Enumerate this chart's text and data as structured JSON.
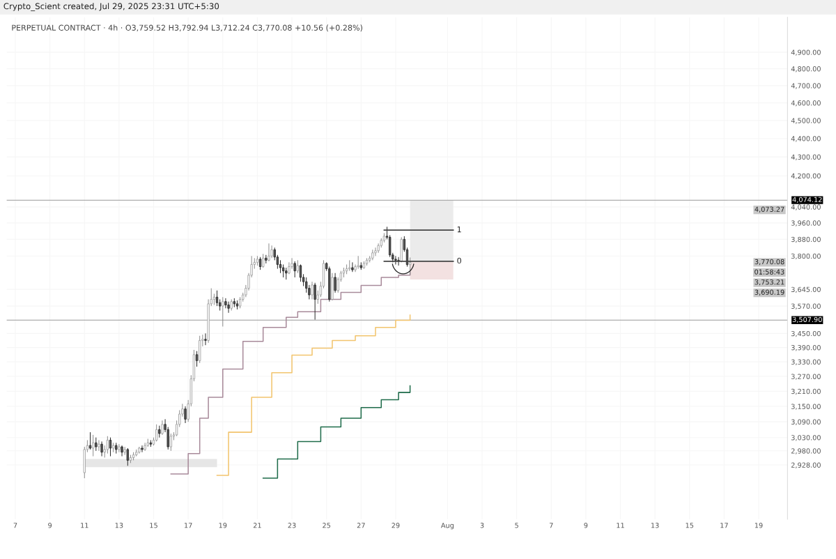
{
  "chart_data": {
    "type": "candlestick",
    "title": "Crypto_Scient created, Jul 29, 2025 23:31 UTC+5:30",
    "subtitle": "PERPETUAL CONTRACT · 4h · O3,759.52 H3,792.94 L3,712.24 C3,770.08 +10.56 (+0.28%)",
    "x": [
      "2025-07-11T00:00",
      "2025-07-11T04:00",
      "2025-07-11T08:00",
      "2025-07-11T12:00",
      "2025-07-11T16:00",
      "2025-07-11T20:00",
      "2025-07-12T00:00",
      "2025-07-12T04:00",
      "2025-07-12T08:00",
      "2025-07-12T12:00",
      "2025-07-12T16:00",
      "2025-07-12T20:00",
      "2025-07-13T00:00",
      "2025-07-13T04:00",
      "2025-07-13T08:00",
      "2025-07-13T12:00",
      "2025-07-13T16:00",
      "2025-07-13T20:00",
      "2025-07-14T00:00",
      "2025-07-14T04:00",
      "2025-07-14T08:00",
      "2025-07-14T12:00",
      "2025-07-14T16:00",
      "2025-07-14T20:00",
      "2025-07-15T00:00",
      "2025-07-15T04:00",
      "2025-07-15T08:00",
      "2025-07-15T12:00",
      "2025-07-15T16:00",
      "2025-07-15T20:00",
      "2025-07-16T00:00",
      "2025-07-16T04:00",
      "2025-07-16T08:00",
      "2025-07-16T12:00",
      "2025-07-16T16:00",
      "2025-07-16T20:00",
      "2025-07-17T00:00",
      "2025-07-17T04:00",
      "2025-07-17T08:00",
      "2025-07-17T12:00",
      "2025-07-17T16:00",
      "2025-07-17T20:00",
      "2025-07-18T00:00",
      "2025-07-18T04:00",
      "2025-07-18T08:00",
      "2025-07-18T12:00",
      "2025-07-18T16:00",
      "2025-07-18T20:00",
      "2025-07-19T00:00",
      "2025-07-19T04:00",
      "2025-07-19T08:00",
      "2025-07-19T12:00",
      "2025-07-19T16:00",
      "2025-07-19T20:00",
      "2025-07-20T00:00",
      "2025-07-20T04:00",
      "2025-07-20T08:00",
      "2025-07-20T12:00",
      "2025-07-20T16:00",
      "2025-07-20T20:00",
      "2025-07-21T00:00",
      "2025-07-21T04:00",
      "2025-07-21T08:00",
      "2025-07-21T12:00",
      "2025-07-21T16:00",
      "2025-07-21T20:00",
      "2025-07-22T00:00",
      "2025-07-22T04:00",
      "2025-07-22T08:00",
      "2025-07-22T12:00",
      "2025-07-22T16:00",
      "2025-07-22T20:00",
      "2025-07-23T00:00",
      "2025-07-23T04:00",
      "2025-07-23T08:00",
      "2025-07-23T12:00",
      "2025-07-23T16:00",
      "2025-07-23T20:00",
      "2025-07-24T00:00",
      "2025-07-24T04:00",
      "2025-07-24T08:00",
      "2025-07-24T12:00",
      "2025-07-24T16:00",
      "2025-07-24T20:00",
      "2025-07-25T00:00",
      "2025-07-25T04:00",
      "2025-07-25T08:00",
      "2025-07-25T12:00",
      "2025-07-25T16:00",
      "2025-07-25T20:00",
      "2025-07-26T00:00",
      "2025-07-26T04:00",
      "2025-07-26T08:00",
      "2025-07-26T12:00",
      "2025-07-26T16:00",
      "2025-07-26T20:00",
      "2025-07-27T00:00",
      "2025-07-27T04:00",
      "2025-07-27T08:00",
      "2025-07-27T12:00",
      "2025-07-27T16:00",
      "2025-07-27T20:00",
      "2025-07-28T00:00",
      "2025-07-28T04:00",
      "2025-07-28T08:00",
      "2025-07-28T12:00",
      "2025-07-28T16:00",
      "2025-07-28T20:00",
      "2025-07-29T00:00",
      "2025-07-29T04:00",
      "2025-07-29T08:00",
      "2025-07-29T12:00",
      "2025-07-29T16:00",
      "2025-07-29T20:00"
    ],
    "ohlc": [
      [
        2900,
        2995,
        2880,
        2985
      ],
      [
        2985,
        3020,
        2975,
        3000
      ],
      [
        3000,
        3050,
        2985,
        2990
      ],
      [
        2990,
        3040,
        2960,
        3010
      ],
      [
        3010,
        3030,
        2980,
        2995
      ],
      [
        2995,
        3020,
        2980,
        3005
      ],
      [
        3005,
        3015,
        2960,
        2975
      ],
      [
        2975,
        3000,
        2955,
        2985
      ],
      [
        2985,
        3035,
        2970,
        3020
      ],
      [
        3020,
        3030,
        2960,
        2990
      ],
      [
        2990,
        3010,
        2975,
        3000
      ],
      [
        3000,
        3010,
        2970,
        2985
      ],
      [
        2985,
        3005,
        2975,
        2995
      ],
      [
        2995,
        3000,
        2960,
        2975
      ],
      [
        2975,
        2995,
        2965,
        2985
      ],
      [
        2985,
        2990,
        2925,
        2945
      ],
      [
        2945,
        2965,
        2935,
        2955
      ],
      [
        2955,
        2975,
        2945,
        2965
      ],
      [
        2965,
        2985,
        2960,
        2975
      ],
      [
        2975,
        2995,
        2970,
        2990
      ],
      [
        2990,
        3000,
        2975,
        2985
      ],
      [
        2985,
        3010,
        2980,
        3000
      ],
      [
        3000,
        3025,
        2995,
        3010
      ],
      [
        3010,
        3020,
        2995,
        3005
      ],
      [
        3005,
        3030,
        3000,
        3020
      ],
      [
        3020,
        3080,
        3015,
        3060
      ],
      [
        3060,
        3075,
        3030,
        3045
      ],
      [
        3045,
        3095,
        3040,
        3080
      ],
      [
        3080,
        3100,
        3050,
        3060
      ],
      [
        3060,
        3070,
        2985,
        2995
      ],
      [
        2995,
        3045,
        2980,
        3035
      ],
      [
        3035,
        3050,
        3020,
        3040
      ],
      [
        3040,
        3095,
        3035,
        3080
      ],
      [
        3080,
        3135,
        3070,
        3120
      ],
      [
        3120,
        3160,
        3110,
        3140
      ],
      [
        3140,
        3150,
        3085,
        3100
      ],
      [
        3100,
        3175,
        3090,
        3160
      ],
      [
        3160,
        3275,
        3150,
        3260
      ],
      [
        3260,
        3380,
        3250,
        3360
      ],
      [
        3360,
        3375,
        3310,
        3335
      ],
      [
        3335,
        3440,
        3325,
        3420
      ],
      [
        3420,
        3445,
        3395,
        3425
      ],
      [
        3425,
        3450,
        3400,
        3420
      ],
      [
        3420,
        3600,
        3410,
        3580
      ],
      [
        3580,
        3650,
        3570,
        3600
      ],
      [
        3600,
        3625,
        3575,
        3610
      ],
      [
        3610,
        3640,
        3570,
        3585
      ],
      [
        3585,
        3600,
        3550,
        3570
      ],
      [
        3570,
        3610,
        3480,
        3590
      ],
      [
        3590,
        3605,
        3560,
        3575
      ],
      [
        3575,
        3590,
        3540,
        3560
      ],
      [
        3560,
        3600,
        3550,
        3590
      ],
      [
        3590,
        3605,
        3565,
        3580
      ],
      [
        3580,
        3595,
        3555,
        3570
      ],
      [
        3570,
        3610,
        3560,
        3600
      ],
      [
        3600,
        3630,
        3590,
        3620
      ],
      [
        3620,
        3665,
        3610,
        3650
      ],
      [
        3650,
        3720,
        3640,
        3710
      ],
      [
        3710,
        3800,
        3700,
        3760
      ],
      [
        3760,
        3790,
        3740,
        3770
      ],
      [
        3770,
        3800,
        3755,
        3785
      ],
      [
        3785,
        3795,
        3735,
        3750
      ],
      [
        3750,
        3810,
        3745,
        3790
      ],
      [
        3790,
        3805,
        3765,
        3780
      ],
      [
        3780,
        3860,
        3775,
        3800
      ],
      [
        3800,
        3850,
        3790,
        3830
      ],
      [
        3830,
        3840,
        3780,
        3795
      ],
      [
        3795,
        3805,
        3740,
        3760
      ],
      [
        3760,
        3780,
        3720,
        3745
      ],
      [
        3745,
        3760,
        3700,
        3730
      ],
      [
        3730,
        3745,
        3690,
        3720
      ],
      [
        3720,
        3770,
        3715,
        3750
      ],
      [
        3750,
        3790,
        3740,
        3765
      ],
      [
        3765,
        3775,
        3700,
        3730
      ],
      [
        3730,
        3780,
        3720,
        3755
      ],
      [
        3755,
        3760,
        3680,
        3700
      ],
      [
        3700,
        3715,
        3660,
        3680
      ],
      [
        3680,
        3700,
        3630,
        3650
      ],
      [
        3650,
        3665,
        3600,
        3620
      ],
      [
        3620,
        3680,
        3600,
        3665
      ],
      [
        3665,
        3675,
        3510,
        3600
      ],
      [
        3600,
        3640,
        3580,
        3620
      ],
      [
        3620,
        3680,
        3610,
        3660
      ],
      [
        3660,
        3780,
        3650,
        3765
      ],
      [
        3765,
        3770,
        3730,
        3740
      ],
      [
        3740,
        3750,
        3590,
        3600
      ],
      [
        3600,
        3720,
        3595,
        3700
      ],
      [
        3700,
        3720,
        3630,
        3640
      ],
      [
        3640,
        3700,
        3630,
        3690
      ],
      [
        3690,
        3730,
        3680,
        3720
      ],
      [
        3720,
        3745,
        3700,
        3730
      ],
      [
        3730,
        3760,
        3715,
        3740
      ],
      [
        3740,
        3780,
        3730,
        3745
      ],
      [
        3745,
        3770,
        3725,
        3735
      ],
      [
        3735,
        3760,
        3725,
        3750
      ],
      [
        3750,
        3800,
        3740,
        3755
      ],
      [
        3755,
        3770,
        3735,
        3745
      ],
      [
        3745,
        3775,
        3740,
        3765
      ],
      [
        3765,
        3790,
        3755,
        3780
      ],
      [
        3780,
        3800,
        3770,
        3790
      ],
      [
        3790,
        3830,
        3780,
        3815
      ],
      [
        3815,
        3840,
        3800,
        3825
      ],
      [
        3825,
        3860,
        3815,
        3850
      ],
      [
        3850,
        3885,
        3840,
        3875
      ],
      [
        3875,
        3910,
        3865,
        3895
      ],
      [
        3895,
        3941,
        3880,
        3890
      ],
      [
        3890,
        3900,
        3795,
        3805
      ],
      [
        3805,
        3815,
        3770,
        3785
      ],
      [
        3785,
        3800,
        3760,
        3780
      ],
      [
        3780,
        3795,
        3755,
        3775
      ],
      [
        3775,
        3890,
        3770,
        3880
      ],
      [
        3880,
        3895,
        3820,
        3830
      ],
      [
        3830,
        3840,
        3750,
        3759.52
      ],
      [
        3759.52,
        3792.94,
        3712.24,
        3770.08
      ]
    ],
    "series": [
      {
        "type": "step",
        "color": "#a88a9a",
        "x": [
          "2025-07-16T00:00",
          "2025-07-17T00:00",
          "2025-07-17T16:00",
          "2025-07-18T04:00",
          "2025-07-19T00:00",
          "2025-07-20T04:00",
          "2025-07-21T08:00",
          "2025-07-22T16:00",
          "2025-07-23T08:00",
          "2025-07-24T16:00",
          "2025-07-25T20:00",
          "2025-07-27T00:00",
          "2025-07-28T04:00",
          "2025-07-29T04:00",
          "2025-07-29T20:00"
        ],
        "values": [
          2895,
          2970,
          3104,
          3186,
          3300,
          3416,
          3476,
          3520,
          3545,
          3600,
          3631,
          3663,
          3700,
          3710,
          3725
        ]
      },
      {
        "type": "step",
        "color": "#f2c46d",
        "x": [
          "2025-07-18T16:00",
          "2025-07-19T08:00",
          "2025-07-20T16:00",
          "2025-07-21T20:00",
          "2025-07-23T00:00",
          "2025-07-24T04:00",
          "2025-07-25T08:00",
          "2025-07-26T16:00",
          "2025-07-27T20:00",
          "2025-07-29T00:00",
          "2025-07-29T20:00"
        ],
        "values": [
          2890,
          3050,
          3186,
          3285,
          3358,
          3387,
          3420,
          3440,
          3476,
          3507,
          3530
        ]
      },
      {
        "type": "step",
        "color": "#1e6b4a",
        "x": [
          "2025-07-21T08:00",
          "2025-07-22T04:00",
          "2025-07-23T08:00",
          "2025-07-24T16:00",
          "2025-07-25T20:00",
          "2025-07-27T00:00",
          "2025-07-28T04:00",
          "2025-07-29T04:00",
          "2025-07-29T20:00"
        ],
        "values": [
          2880,
          2950,
          3015,
          3070,
          3104,
          3145,
          3176,
          3205,
          3232
        ]
      },
      {
        "type": "line",
        "name": "1",
        "color": "#444444",
        "x": [
          "2025-07-28T08:00",
          "2025-08-01T08:00"
        ],
        "values": [
          3925,
          3925
        ]
      },
      {
        "type": "line",
        "name": "0",
        "color": "#444444",
        "x": [
          "2025-07-28T08:00",
          "2025-08-01T08:00"
        ],
        "values": [
          3775,
          3775
        ]
      },
      {
        "type": "line",
        "color": "#ebebeb",
        "x": [
          "2025-07-29T20:00",
          "2025-08-01T08:00"
        ],
        "values": [
          null,
          null
        ],
        "lower": [
          3775,
          3775
        ],
        "upper": [
          4074.12,
          4074.12
        ]
      },
      {
        "type": "line",
        "color": "#f3e1e1",
        "x": [
          "2025-07-29T20:00",
          "2025-08-01T08:00"
        ],
        "values": [
          null,
          null
        ],
        "lower": [
          3690.19,
          3690.19
        ],
        "upper": [
          3775,
          3775
        ]
      },
      {
        "type": "line",
        "color": "#e6e6e6",
        "x": [
          "2025-07-11T00:00",
          "2025-07-18T16:00"
        ],
        "values": [
          null,
          null
        ],
        "lower": [
          2920,
          2920
        ],
        "upper": [
          2950,
          2950
        ]
      }
    ],
    "ref_lines": [
      {
        "axis": "y",
        "value": 4074.12,
        "label": "4,074.12",
        "color": "#999999"
      },
      {
        "axis": "y",
        "value": 3507.9,
        "label": "3,507.90",
        "color": "#999999"
      }
    ],
    "annotations": [
      "4,073.27",
      "3,770.08",
      "01:58:43",
      "3,753.21",
      "3,690.19"
    ],
    "log": true,
    "ylim": [
      2736,
      5118
    ],
    "yticks": [
      {
        "value": 4900,
        "label": "4,900.00"
      },
      {
        "value": 4800,
        "label": "4,800.00"
      },
      {
        "value": 4700,
        "label": "4,700.00"
      },
      {
        "value": 4600,
        "label": "4,600.00"
      },
      {
        "value": 4500,
        "label": "4,500.00"
      },
      {
        "value": 4400,
        "label": "4,400.00"
      },
      {
        "value": 4300,
        "label": "4,300.00"
      },
      {
        "value": 4200,
        "label": "4,200.00"
      },
      {
        "value": 4040,
        "label": "4,040.00"
      },
      {
        "value": 3960,
        "label": "3,960.00"
      },
      {
        "value": 3880,
        "label": "3,880.00"
      },
      {
        "value": 3800,
        "label": "3,800.00"
      },
      {
        "value": 3645,
        "label": "3,645.00"
      },
      {
        "value": 3570,
        "label": "3,570.00"
      },
      {
        "value": 3450,
        "label": "3,450.00"
      },
      {
        "value": 3390,
        "label": "3,390.00"
      },
      {
        "value": 3330,
        "label": "3,330.00"
      },
      {
        "value": 3270,
        "label": "3,270.00"
      },
      {
        "value": 3210,
        "label": "3,210.00"
      },
      {
        "value": 3150,
        "label": "3,150.00"
      },
      {
        "value": 3090,
        "label": "3,090.00"
      },
      {
        "value": 3030,
        "label": "3,030.00"
      },
      {
        "value": 2980,
        "label": "2,980.00"
      },
      {
        "value": 2928,
        "label": "2,928.00"
      }
    ],
    "xlim": [
      "2025-07-06T12:00",
      "2025-08-20T16:00"
    ],
    "xticks": [
      {
        "value": "2025-07-07",
        "label": "7"
      },
      {
        "value": "2025-07-09",
        "label": "9"
      },
      {
        "value": "2025-07-11",
        "label": "11"
      },
      {
        "value": "2025-07-13",
        "label": "13"
      },
      {
        "value": "2025-07-15",
        "label": "15"
      },
      {
        "value": "2025-07-17",
        "label": "17"
      },
      {
        "value": "2025-07-19",
        "label": "19"
      },
      {
        "value": "2025-07-21",
        "label": "21"
      },
      {
        "value": "2025-07-23",
        "label": "23"
      },
      {
        "value": "2025-07-25",
        "label": "25"
      },
      {
        "value": "2025-07-27",
        "label": "27"
      },
      {
        "value": "2025-07-29",
        "label": "29"
      },
      {
        "value": "2025-08-01",
        "label": "Aug"
      },
      {
        "value": "2025-08-03",
        "label": "3"
      },
      {
        "value": "2025-08-05",
        "label": "5"
      },
      {
        "value": "2025-08-07",
        "label": "7"
      },
      {
        "value": "2025-08-09",
        "label": "9"
      },
      {
        "value": "2025-08-11",
        "label": "11"
      },
      {
        "value": "2025-08-13",
        "label": "13"
      },
      {
        "value": "2025-08-15",
        "label": "15"
      },
      {
        "value": "2025-08-17",
        "label": "17"
      },
      {
        "value": "2025-08-19",
        "label": "19"
      }
    ],
    "grid": true
  }
}
